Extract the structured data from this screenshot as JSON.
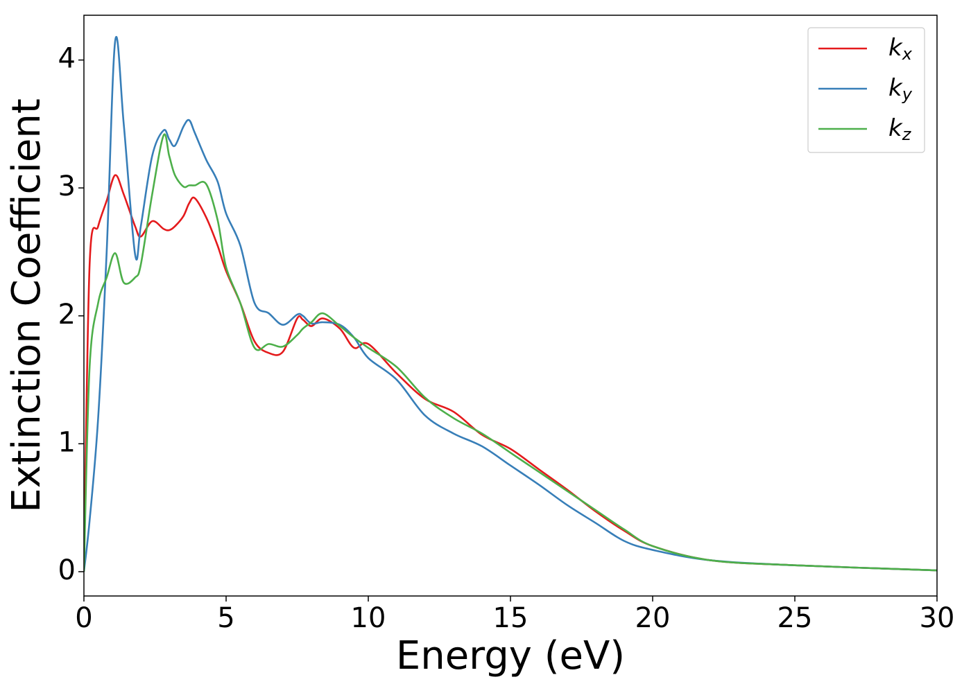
{
  "chart_data": {
    "type": "line",
    "xlabel": "Energy (eV)",
    "ylabel": "Extinction Coefficient",
    "x": [
      0,
      0.2,
      0.5,
      0.8,
      1.1,
      1.4,
      1.8,
      2.0,
      2.4,
      2.8,
      3.0,
      3.2,
      3.5,
      3.7,
      3.9,
      4.3,
      4.7,
      5.0,
      5.5,
      6.0,
      6.5,
      7.0,
      7.5,
      7.7,
      8.0,
      8.4,
      9.0,
      9.5,
      10,
      11,
      12,
      13,
      14,
      15,
      16,
      17,
      18,
      19,
      20,
      22,
      25,
      30
    ],
    "series": [
      {
        "name": "kx",
        "color": "#e41a1c",
        "values": [
          0,
          2.4,
          2.7,
          2.9,
          3.1,
          2.95,
          2.7,
          2.62,
          2.74,
          2.68,
          2.67,
          2.7,
          2.78,
          2.88,
          2.92,
          2.77,
          2.55,
          2.35,
          2.1,
          1.8,
          1.71,
          1.72,
          1.98,
          1.97,
          1.92,
          1.98,
          1.9,
          1.75,
          1.78,
          1.55,
          1.35,
          1.25,
          1.07,
          0.96,
          0.8,
          0.64,
          0.47,
          0.32,
          0.2,
          0.09,
          0.05,
          0.01
        ]
      },
      {
        "name": "ky",
        "color": "#377eb8",
        "values": [
          0,
          0.4,
          1.2,
          2.5,
          4.15,
          3.5,
          2.48,
          2.7,
          3.25,
          3.45,
          3.38,
          3.33,
          3.48,
          3.53,
          3.43,
          3.22,
          3.05,
          2.8,
          2.55,
          2.1,
          2.02,
          1.93,
          2.01,
          2.0,
          1.94,
          1.95,
          1.93,
          1.83,
          1.67,
          1.5,
          1.22,
          1.08,
          0.98,
          0.83,
          0.68,
          0.52,
          0.38,
          0.24,
          0.17,
          0.09,
          0.05,
          0.01
        ]
      },
      {
        "name": "kz",
        "color": "#4daf4a",
        "values": [
          0,
          1.6,
          2.1,
          2.3,
          2.49,
          2.26,
          2.3,
          2.4,
          2.95,
          3.41,
          3.25,
          3.1,
          3.01,
          3.02,
          3.02,
          3.03,
          2.75,
          2.38,
          2.1,
          1.75,
          1.78,
          1.76,
          1.85,
          1.9,
          1.95,
          2.02,
          1.92,
          1.83,
          1.75,
          1.6,
          1.36,
          1.2,
          1.08,
          0.93,
          0.78,
          0.63,
          0.48,
          0.33,
          0.2,
          0.09,
          0.05,
          0.01
        ]
      }
    ],
    "xlim": [
      0,
      30
    ],
    "xticks": [
      0,
      5,
      10,
      15,
      20,
      25,
      30
    ],
    "ylim": [
      -0.19,
      4.35
    ],
    "yticks": [
      0,
      1,
      2,
      3,
      4
    ],
    "legend": "upper right"
  }
}
